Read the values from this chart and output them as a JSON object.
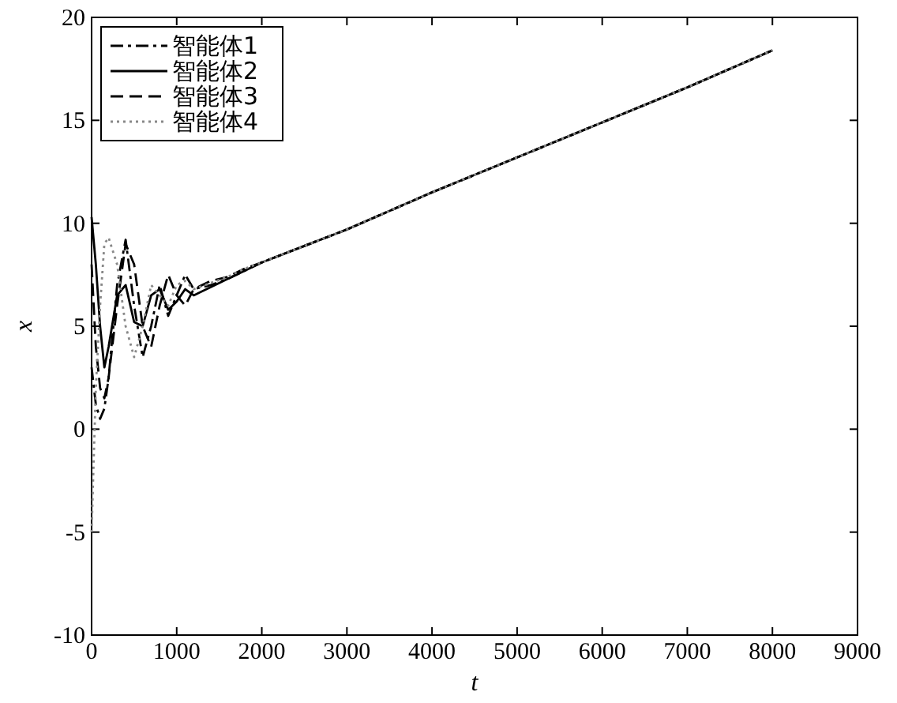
{
  "chart_data": {
    "type": "line",
    "xlabel": "t",
    "ylabel": "x",
    "xlim": [
      0,
      9000
    ],
    "ylim": [
      -10,
      20
    ],
    "xticks": [
      0,
      1000,
      2000,
      3000,
      4000,
      5000,
      6000,
      7000,
      8000,
      9000
    ],
    "yticks": [
      -10,
      -5,
      0,
      5,
      10,
      15,
      20
    ],
    "legend": "top left",
    "x": [
      0,
      50,
      100,
      150,
      200,
      300,
      400,
      500,
      600,
      700,
      800,
      900,
      1000,
      1100,
      1200,
      1400,
      1600,
      1800,
      2000,
      2500,
      3000,
      4000,
      5000,
      6000,
      7000,
      8000
    ],
    "series": [
      {
        "name": "智能体1",
        "color": "#000000",
        "line_style": "dashdot",
        "values": [
          3,
          1.2,
          0.5,
          1,
          2.5,
          7,
          9.2,
          6,
          3.5,
          5,
          7,
          5.5,
          6.5,
          7.5,
          6.8,
          7,
          7.3,
          7.7,
          8.1,
          8.9,
          9.7,
          11.5,
          13.2,
          14.9,
          16.6,
          18.4
        ]
      },
      {
        "name": "智能体2",
        "color": "#000000",
        "line_style": "solid",
        "values": [
          10.3,
          8,
          5,
          3,
          4,
          6.5,
          7,
          5.2,
          5,
          6.5,
          6.8,
          5.8,
          6.2,
          6.8,
          6.5,
          6.9,
          7.3,
          7.7,
          8.1,
          8.9,
          9.7,
          11.5,
          13.2,
          14.9,
          16.6,
          18.4
        ]
      },
      {
        "name": "智能体3",
        "color": "#000000",
        "line_style": "dashed",
        "values": [
          8,
          4,
          2,
          1.5,
          2.5,
          6,
          9,
          8,
          5,
          4,
          6,
          7.5,
          6.5,
          6,
          6.8,
          7.2,
          7.4,
          7.8,
          8.1,
          8.9,
          9.7,
          11.5,
          13.2,
          14.9,
          16.6,
          18.4
        ]
      },
      {
        "name": "智能体4",
        "color": "#888888",
        "line_style": "dotted",
        "values": [
          -5,
          2,
          6,
          9,
          9.3,
          8,
          5,
          3.5,
          5,
          7,
          6.5,
          6,
          7,
          7.2,
          6.8,
          7.1,
          7.4,
          7.8,
          8.1,
          8.9,
          9.7,
          11.5,
          13.2,
          14.9,
          16.6,
          18.4
        ]
      }
    ]
  }
}
